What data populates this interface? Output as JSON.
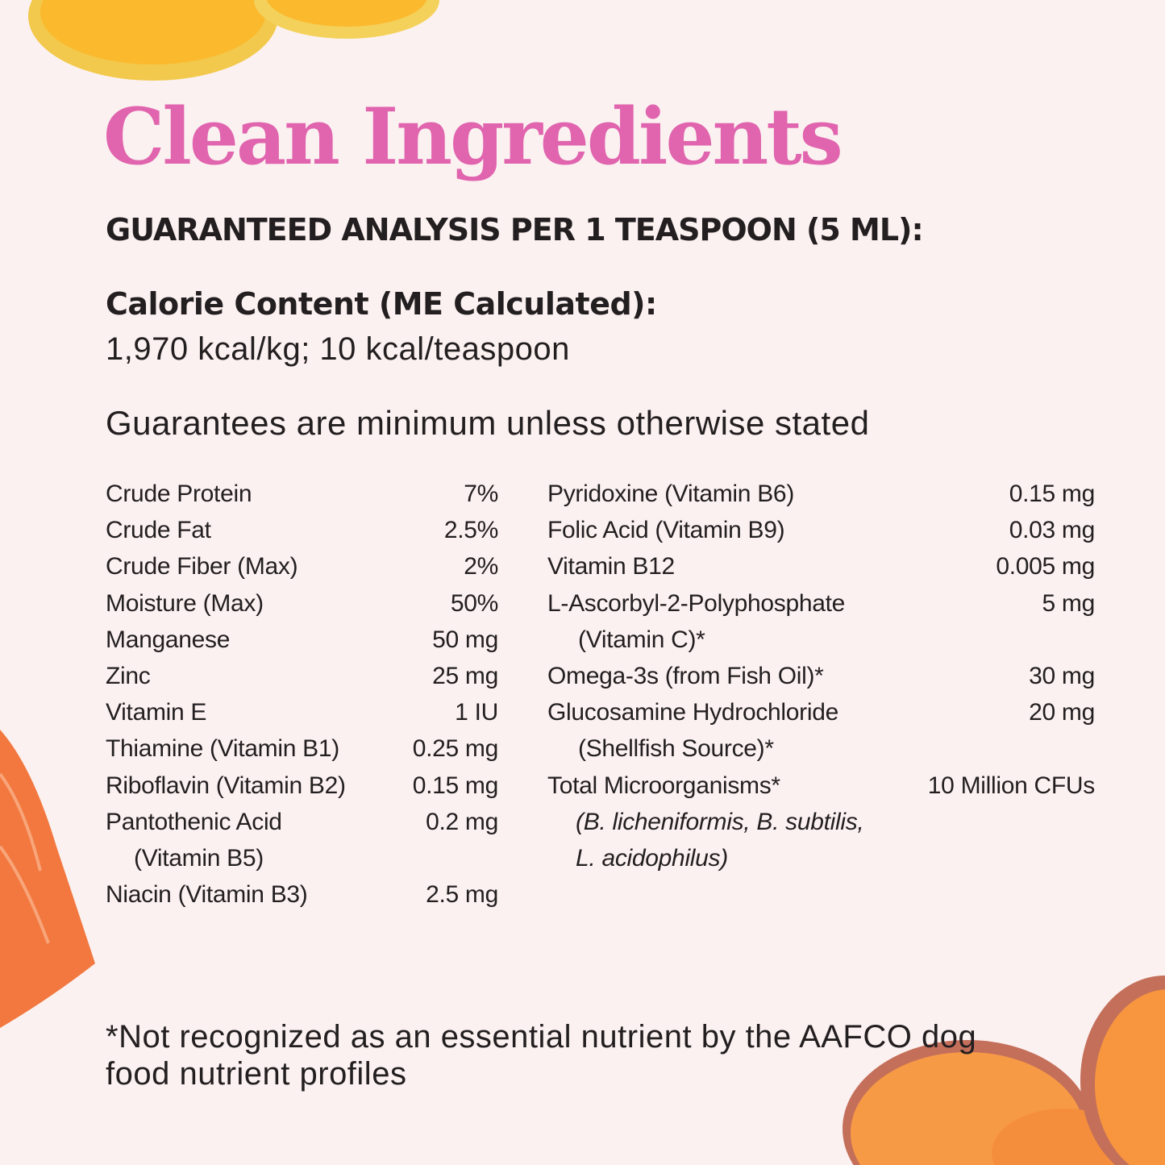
{
  "title": "Clean Ingredients",
  "subtitle": "GUARANTEED ANALYSIS PER 1 TEASPOON (5 ML):",
  "calorie": {
    "label": "Calorie Content (ME Calculated):",
    "value": "1,970 kcal/kg; 10 kcal/teaspoon"
  },
  "guarantee_note": "Guarantees are minimum unless otherwise stated",
  "left_items": [
    {
      "label": "Crude Protein",
      "value": "7%"
    },
    {
      "label": "Crude Fat",
      "value": "2.5%"
    },
    {
      "label": "Crude Fiber (Max)",
      "value": "2%"
    },
    {
      "label": "Moisture (Max)",
      "value": "50%"
    },
    {
      "label": "Manganese",
      "value": "50 mg"
    },
    {
      "label": "Zinc",
      "value": "25 mg"
    },
    {
      "label": "Vitamin E",
      "value": "1 IU"
    },
    {
      "label": "Thiamine (Vitamin B1)",
      "value": "0.25 mg"
    },
    {
      "label": "Riboflavin (Vitamin B2)",
      "value": "0.15 mg"
    },
    {
      "label": "Pantothenic Acid",
      "value": "0.2 mg",
      "sub": "(Vitamin B5)"
    },
    {
      "label": "Niacin (Vitamin B3)",
      "value": "2.5 mg"
    }
  ],
  "right_items": [
    {
      "label": "Pyridoxine (Vitamin B6)",
      "value": "0.15 mg"
    },
    {
      "label": "Folic Acid (Vitamin B9)",
      "value": "0.03 mg"
    },
    {
      "label": "Vitamin B12",
      "value": "0.005 mg"
    },
    {
      "label": "L-Ascorbyl-2-Polyphosphate",
      "value": "5 mg",
      "sub": "(Vitamin C)*"
    },
    {
      "label": "Omega-3s (from Fish Oil)*",
      "value": "30 mg"
    },
    {
      "label": "Glucosamine Hydrochloride",
      "value": "20 mg",
      "sub": "(Shellfish Source)*"
    },
    {
      "label": "Total Microorganisms*",
      "value": "10 Million CFUs",
      "sub_italic": [
        "(B. licheniformis, B. subtilis,",
        "L. acidophilus)"
      ]
    }
  ],
  "footnote": "*Not recognized as an essential nutrient by the AAFCO dog food nutrient profiles",
  "colors": {
    "background": "#fbf1f0",
    "title": "#e064ae",
    "text": "#231f20"
  },
  "decorations": [
    "lemon-slices",
    "salmon-fillet",
    "sweet-potato-slices"
  ]
}
